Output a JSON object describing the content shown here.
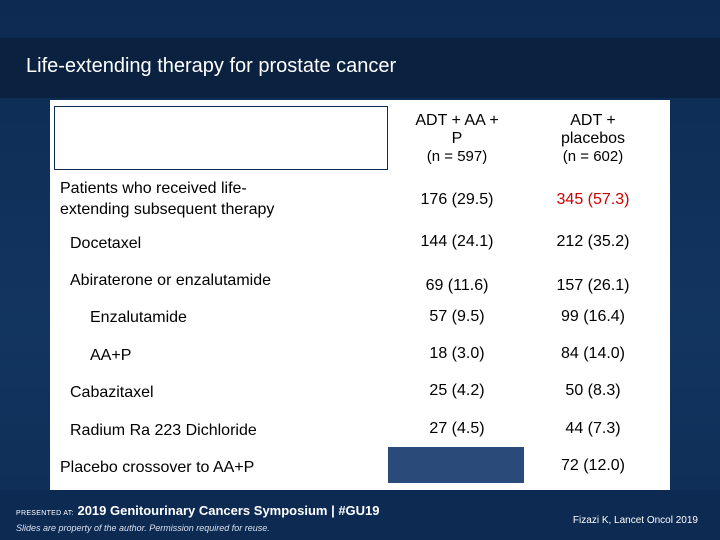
{
  "slide": {
    "title": "Life-extending therapy for prostate cancer"
  },
  "table": {
    "columns": [
      {
        "line1": "ADT + AA +",
        "line2": "P",
        "n": "(n = 597)"
      },
      {
        "line1": "ADT +",
        "line2": "placebos",
        "n": "(n = 602)"
      }
    ],
    "rows": [
      {
        "label_line1": "Patients who received life-",
        "label_line2": "extending subsequent therapy",
        "col1": "176 (29.5)",
        "col2": "345 (57.3)"
      },
      {
        "label": "Docetaxel",
        "col1": "144 (24.1)",
        "col2": "212 (35.2)"
      },
      {
        "label": "Abiraterone or enzalutamide",
        "col1": "69 (11.6)",
        "col2": "157 (26.1)"
      },
      {
        "label": "Enzalutamide",
        "col1": "57 (9.5)",
        "col2": "99 (16.4)"
      },
      {
        "label": "AA+P",
        "col1": "18 (3.0)",
        "col2": "84 (14.0)"
      },
      {
        "label": "Cabazitaxel",
        "col1": "25 (4.2)",
        "col2": "50 (8.3)"
      },
      {
        "label": "Radium Ra 223 Dichloride",
        "col1": "27 (4.5)",
        "col2": "44 (7.3)"
      },
      {
        "label": "Placebo crossover to AA+P",
        "col1": "",
        "col2": "72 (12.0)"
      }
    ]
  },
  "footer": {
    "presented_at": "PRESENTED AT:",
    "symposium": "2019 Genitourinary Cancers Symposium | #GU19",
    "disclaimer": "Slides are property of the author. Permission required for reuse.",
    "citation": "Fizazi K, Lancet Oncol 2019"
  },
  "colors": {
    "background": "#0d2a52",
    "highlight_red": "#cc0000",
    "empty_cell": "#2a4a7a"
  }
}
